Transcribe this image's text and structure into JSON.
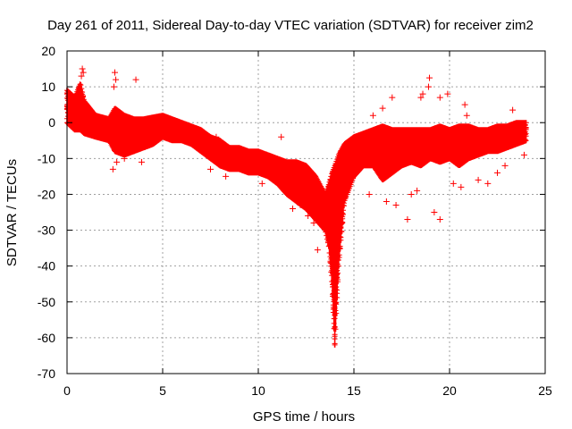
{
  "chart_data": {
    "type": "scatter",
    "title": "Day 261 of 2011, Sidereal Day-to-day VTEC variation (SDTVAR) for receiver zim2",
    "xlabel": "GPS time / hours",
    "ylabel": "SDTVAR / TECUs",
    "xlim": [
      0,
      25
    ],
    "ylim": [
      -70,
      20
    ],
    "xticks": [
      0,
      5,
      10,
      15,
      20,
      25
    ],
    "yticks": [
      20,
      10,
      0,
      -10,
      -20,
      -30,
      -40,
      -50,
      -60,
      -70
    ],
    "grid": true,
    "marker": "+",
    "series_color": "#ff0000",
    "series": [
      {
        "name": "SDTVAR",
        "band": [
          {
            "x": 0.0,
            "low": 0,
            "high": 9
          },
          {
            "x": 0.2,
            "low": -1,
            "high": 8
          },
          {
            "x": 0.4,
            "low": -2,
            "high": 7
          },
          {
            "x": 0.7,
            "low": -2,
            "high": 11
          },
          {
            "x": 0.9,
            "low": -3,
            "high": 6
          },
          {
            "x": 1.5,
            "low": -4,
            "high": 2
          },
          {
            "x": 2.2,
            "low": -5,
            "high": 1
          },
          {
            "x": 2.5,
            "low": -8,
            "high": 4
          },
          {
            "x": 3.0,
            "low": -9,
            "high": 2
          },
          {
            "x": 3.5,
            "low": -8,
            "high": 1
          },
          {
            "x": 4.0,
            "low": -7,
            "high": 1
          },
          {
            "x": 4.5,
            "low": -6,
            "high": 1.5
          },
          {
            "x": 5.0,
            "low": -4,
            "high": 2
          },
          {
            "x": 5.5,
            "low": -5,
            "high": 1
          },
          {
            "x": 6.0,
            "low": -5,
            "high": 0
          },
          {
            "x": 6.5,
            "low": -6,
            "high": -1
          },
          {
            "x": 7.0,
            "low": -8,
            "high": -2
          },
          {
            "x": 7.5,
            "low": -10,
            "high": -4
          },
          {
            "x": 8.0,
            "low": -12,
            "high": -5
          },
          {
            "x": 8.5,
            "low": -13,
            "high": -7
          },
          {
            "x": 9.0,
            "low": -13,
            "high": -7
          },
          {
            "x": 9.5,
            "low": -14,
            "high": -8
          },
          {
            "x": 10.0,
            "low": -14,
            "high": -8
          },
          {
            "x": 10.5,
            "low": -15,
            "high": -9
          },
          {
            "x": 11.0,
            "low": -17,
            "high": -10
          },
          {
            "x": 11.5,
            "low": -20,
            "high": -11
          },
          {
            "x": 12.0,
            "low": -22,
            "high": -11
          },
          {
            "x": 12.5,
            "low": -24,
            "high": -12
          },
          {
            "x": 13.0,
            "low": -27,
            "high": -15
          },
          {
            "x": 13.5,
            "low": -30,
            "high": -20
          },
          {
            "x": 13.7,
            "low": -35,
            "high": -17
          },
          {
            "x": 13.85,
            "low": -45,
            "high": -14
          },
          {
            "x": 14.0,
            "low": -62,
            "high": -12
          },
          {
            "x": 14.2,
            "low": -40,
            "high": -9
          },
          {
            "x": 14.5,
            "low": -22,
            "high": -6
          },
          {
            "x": 15.0,
            "low": -15,
            "high": -4
          },
          {
            "x": 15.5,
            "low": -12,
            "high": -3
          },
          {
            "x": 16.0,
            "low": -12,
            "high": -2
          },
          {
            "x": 16.5,
            "low": -16,
            "high": -1
          },
          {
            "x": 17.0,
            "low": -14,
            "high": -2
          },
          {
            "x": 17.5,
            "low": -12,
            "high": -2
          },
          {
            "x": 18.0,
            "low": -11,
            "high": -2
          },
          {
            "x": 18.5,
            "low": -12,
            "high": -2
          },
          {
            "x": 19.0,
            "low": -10,
            "high": -2
          },
          {
            "x": 19.5,
            "low": -11,
            "high": -1
          },
          {
            "x": 20.0,
            "low": -10,
            "high": -2
          },
          {
            "x": 20.5,
            "low": -12,
            "high": -1
          },
          {
            "x": 21.0,
            "low": -10,
            "high": -1
          },
          {
            "x": 21.5,
            "low": -9,
            "high": -2
          },
          {
            "x": 22.0,
            "low": -8,
            "high": -2
          },
          {
            "x": 22.5,
            "low": -8,
            "high": -1
          },
          {
            "x": 23.0,
            "low": -7,
            "high": -1
          },
          {
            "x": 23.5,
            "low": -6,
            "high": 0
          },
          {
            "x": 24.0,
            "low": -5,
            "high": 0
          }
        ],
        "outliers": [
          {
            "x": 0.8,
            "y": 15
          },
          {
            "x": 0.85,
            "y": 14
          },
          {
            "x": 0.75,
            "y": 13
          },
          {
            "x": 2.5,
            "y": 14
          },
          {
            "x": 2.55,
            "y": 12
          },
          {
            "x": 2.45,
            "y": 10
          },
          {
            "x": 3.6,
            "y": 12
          },
          {
            "x": 2.4,
            "y": -13
          },
          {
            "x": 2.6,
            "y": -11
          },
          {
            "x": 3.0,
            "y": -10
          },
          {
            "x": 3.9,
            "y": -11
          },
          {
            "x": 8.3,
            "y": -15
          },
          {
            "x": 7.5,
            "y": -13
          },
          {
            "x": 10.2,
            "y": -17
          },
          {
            "x": 11.4,
            "y": -19
          },
          {
            "x": 11.8,
            "y": -24
          },
          {
            "x": 12.2,
            "y": -23
          },
          {
            "x": 13.1,
            "y": -35.5
          },
          {
            "x": 12.6,
            "y": -26
          },
          {
            "x": 12.9,
            "y": -28
          },
          {
            "x": 11.2,
            "y": -4
          },
          {
            "x": 7.8,
            "y": -4
          },
          {
            "x": 16.0,
            "y": 2
          },
          {
            "x": 16.5,
            "y": 4
          },
          {
            "x": 17.0,
            "y": 7
          },
          {
            "x": 18.5,
            "y": 7
          },
          {
            "x": 18.6,
            "y": 8
          },
          {
            "x": 18.9,
            "y": 10
          },
          {
            "x": 18.95,
            "y": 12.5
          },
          {
            "x": 19.5,
            "y": 7
          },
          {
            "x": 19.9,
            "y": 8
          },
          {
            "x": 20.8,
            "y": 5
          },
          {
            "x": 20.9,
            "y": 2
          },
          {
            "x": 23.3,
            "y": 3.5
          },
          {
            "x": 23.9,
            "y": -9
          },
          {
            "x": 16.7,
            "y": -22
          },
          {
            "x": 17.2,
            "y": -23
          },
          {
            "x": 17.8,
            "y": -27
          },
          {
            "x": 18.0,
            "y": -20
          },
          {
            "x": 18.3,
            "y": -19
          },
          {
            "x": 19.2,
            "y": -25
          },
          {
            "x": 19.5,
            "y": -27
          },
          {
            "x": 20.2,
            "y": -17
          },
          {
            "x": 20.6,
            "y": -18
          },
          {
            "x": 21.5,
            "y": -16
          },
          {
            "x": 22.0,
            "y": -17
          },
          {
            "x": 22.5,
            "y": -14
          },
          {
            "x": 22.9,
            "y": -12
          },
          {
            "x": 15.8,
            "y": -20
          },
          {
            "x": 14.8,
            "y": -12
          },
          {
            "x": 4.6,
            "y": -3
          }
        ]
      }
    ]
  }
}
